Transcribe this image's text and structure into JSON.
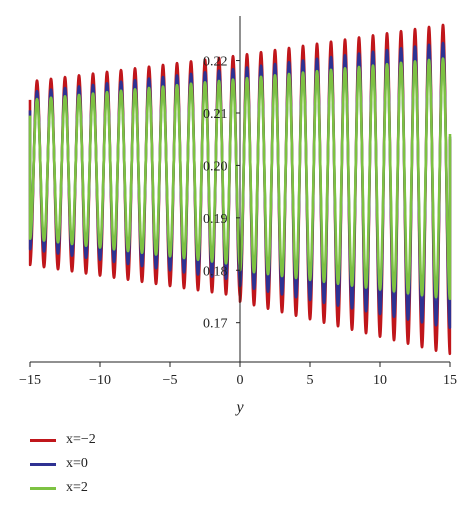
{
  "chart_data": {
    "type": "line",
    "xlabel": "y",
    "ylabel": "",
    "xlim": [
      -15,
      15
    ],
    "ylim": [
      0.1625,
      0.2285
    ],
    "x_ticks": [
      -15,
      -10,
      -5,
      0,
      5,
      10,
      15
    ],
    "x_tick_labels": [
      "−15",
      "−10",
      "−5",
      "0",
      "5",
      "10",
      "15"
    ],
    "y_ticks": [
      0.17,
      0.18,
      0.19,
      0.2,
      0.21,
      0.22
    ],
    "y_tick_labels": [
      "0.17",
      "0.18",
      "0.19",
      "0.20",
      "0.21",
      "0.22"
    ],
    "grid": false,
    "legend_position": "bottom-left",
    "period": 1.0,
    "series": [
      {
        "name": "x=−2",
        "color": "#c0161b",
        "start_value": 0.2125,
        "end_value": 0.205,
        "left_segment": {
          "x_range": [
            -15,
            0
          ],
          "max": [
            0.216,
            0.221
          ],
          "min": [
            0.181,
            0.175
          ]
        },
        "right_segment": {
          "x_range": [
            0,
            15
          ],
          "max": [
            0.221,
            0.227
          ],
          "min": [
            0.174,
            0.164
          ]
        }
      },
      {
        "name": "x=0",
        "color": "#2e3192",
        "start_value": 0.2105,
        "end_value": 0.2055,
        "left_segment": {
          "x_range": [
            -15,
            0
          ],
          "max": [
            0.214,
            0.2185
          ],
          "min": [
            0.184,
            0.178
          ]
        },
        "right_segment": {
          "x_range": [
            0,
            15
          ],
          "max": [
            0.2185,
            0.2235
          ],
          "min": [
            0.177,
            0.169
          ]
        }
      },
      {
        "name": "x=2",
        "color": "#7dc242",
        "start_value": 0.2095,
        "end_value": 0.206,
        "left_segment": {
          "x_range": [
            -15,
            0
          ],
          "max": [
            0.2125,
            0.2165
          ],
          "min": [
            0.186,
            0.181
          ]
        },
        "right_segment": {
          "x_range": [
            0,
            15
          ],
          "max": [
            0.2165,
            0.2205
          ],
          "min": [
            0.18,
            0.1745
          ]
        }
      }
    ]
  }
}
